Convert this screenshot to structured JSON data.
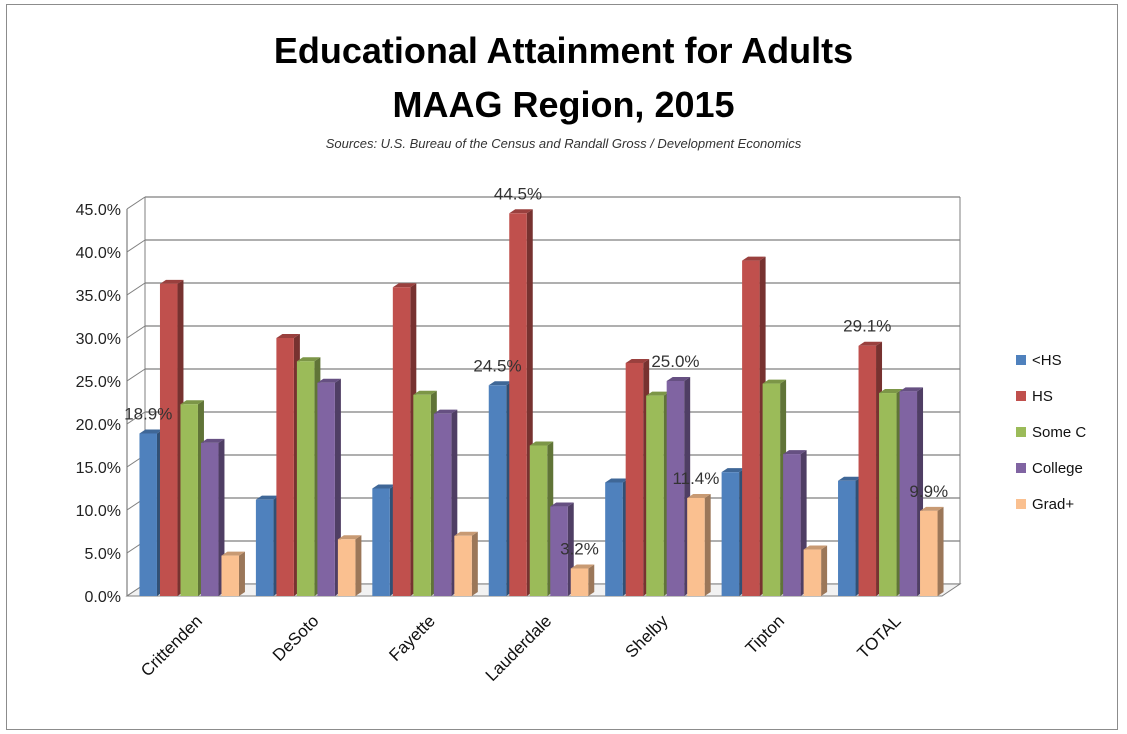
{
  "chart_data": {
    "type": "bar",
    "title": "Educational Attainment for Adults",
    "title_line2": "MAAG Region, 2015",
    "subtitle": "Sources: U.S. Bureau of the Census and Randall Gross / Development Economics",
    "categories": [
      "Crittenden",
      "DeSoto",
      "Fayette",
      "Lauderdale",
      "Shelby",
      "Tipton",
      "TOTAL"
    ],
    "series": [
      {
        "name": "<HS",
        "color": "#4f81bd",
        "values": [
          18.9,
          11.2,
          12.5,
          24.5,
          13.2,
          14.4,
          13.4
        ]
      },
      {
        "name": "HS",
        "color": "#c0504d",
        "values": [
          36.3,
          30.0,
          35.9,
          44.5,
          27.1,
          39.0,
          29.1
        ]
      },
      {
        "name": "Some C",
        "color": "#9bbb59",
        "values": [
          22.3,
          27.3,
          23.4,
          17.5,
          23.3,
          24.7,
          23.6
        ]
      },
      {
        "name": "College",
        "color": "#8064a2",
        "values": [
          17.8,
          24.8,
          21.2,
          10.4,
          25.0,
          16.5,
          23.8
        ]
      },
      {
        "name": "Grad+",
        "color": "#fac090",
        "values": [
          4.7,
          6.6,
          7.0,
          3.2,
          11.4,
          5.4,
          9.9
        ]
      }
    ],
    "data_labels": [
      {
        "series": 0,
        "category": 0,
        "text": "18.9%"
      },
      {
        "series": 1,
        "category": 3,
        "text": "44.5%"
      },
      {
        "series": 0,
        "category": 3,
        "text": "24.5%"
      },
      {
        "series": 4,
        "category": 3,
        "text": "3.2%"
      },
      {
        "series": 3,
        "category": 4,
        "text": "25.0%"
      },
      {
        "series": 4,
        "category": 4,
        "text": "11.4%"
      },
      {
        "series": 1,
        "category": 6,
        "text": "29.1%"
      },
      {
        "series": 4,
        "category": 6,
        "text": "9.9%"
      }
    ],
    "ylim": [
      0,
      45
    ],
    "yticks": [
      "0.0%",
      "5.0%",
      "10.0%",
      "15.0%",
      "20.0%",
      "25.0%",
      "30.0%",
      "35.0%",
      "40.0%",
      "45.0%"
    ],
    "grid": true,
    "legend_position": "right",
    "three_d": true
  }
}
